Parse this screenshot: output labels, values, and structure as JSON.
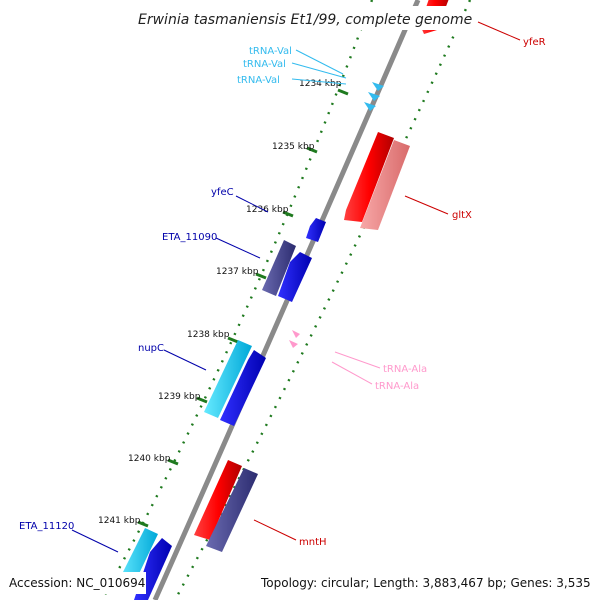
{
  "title": "Erwinia tasmaniensis Et1/99, complete genome",
  "accession": "Accession: NC_010694",
  "topology": "Topology: circular; Length: 3,883,467 bp; Genes: 3,535",
  "ticks": [
    "1234 kbp",
    "1235 kbp",
    "1236 kbp",
    "1237 kbp",
    "1238 kbp",
    "1239 kbp",
    "1240 kbp",
    "1241 kbp"
  ],
  "gene_labels": {
    "trna_val_1": "tRNA-Val",
    "trna_val_2": "tRNA-Val",
    "trna_val_3": "tRNA-Val",
    "yfec": "yfeC",
    "eta_11090": "ETA_11090",
    "nupc": "nupC",
    "eta_11120": "ETA_11120",
    "yfer": "yfeR",
    "gltx": "gltX",
    "trna_ala_1": "tRNA-Ala",
    "trna_ala_2": "tRNA-Ala",
    "mnth": "mntH"
  },
  "colors": {
    "backbone": "#808080",
    "tick_green": "#1f7a1f",
    "red_gene": "#ff0000",
    "pink_gene": "#f08080",
    "blue_gene": "#0000ee",
    "navy_gene": "#3a3a8a",
    "cyan_gene": "#00c8f0",
    "trna_val": "#33bbee",
    "trna_ala": "#ff99cc",
    "label_blue": "#0000aa",
    "label_red": "#cc0000"
  }
}
